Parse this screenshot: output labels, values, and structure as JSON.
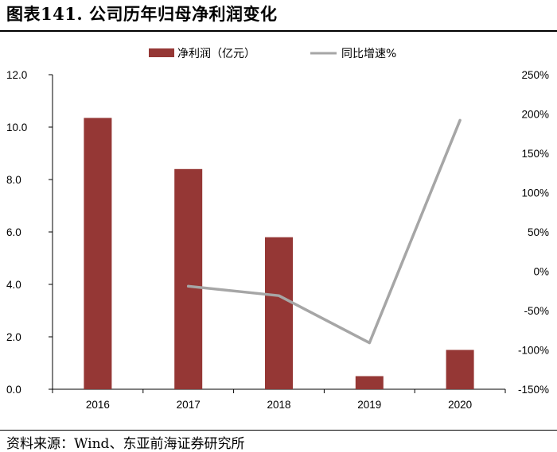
{
  "figure_title": "图表141. 公司历年归母净利润变化",
  "source": "资料来源：Wind、东亚前海证券研究所",
  "colors": {
    "bar": "#953735",
    "line": "#a6a6a6"
  },
  "chart_data": {
    "type": "bar",
    "categories": [
      "2016",
      "2017",
      "2018",
      "2019",
      "2020"
    ],
    "series": [
      {
        "name": "净利润（亿元）",
        "type": "bar",
        "axis": "left",
        "values": [
          10.35,
          8.4,
          5.8,
          0.5,
          1.5
        ]
      },
      {
        "name": "同比增速%",
        "type": "line",
        "axis": "right",
        "values": [
          null,
          -19,
          -31,
          -91,
          192
        ]
      }
    ],
    "y_left": {
      "lim": [
        0,
        12
      ],
      "ticks": [
        "0.0",
        "2.0",
        "4.0",
        "6.0",
        "8.0",
        "10.0",
        "12.0"
      ]
    },
    "y_right": {
      "lim": [
        -150,
        250
      ],
      "ticks": [
        "-150%",
        "-100%",
        "-50%",
        "0%",
        "50%",
        "100%",
        "150%",
        "200%",
        "250%"
      ]
    },
    "legend_position": "top-center",
    "grid": false
  }
}
